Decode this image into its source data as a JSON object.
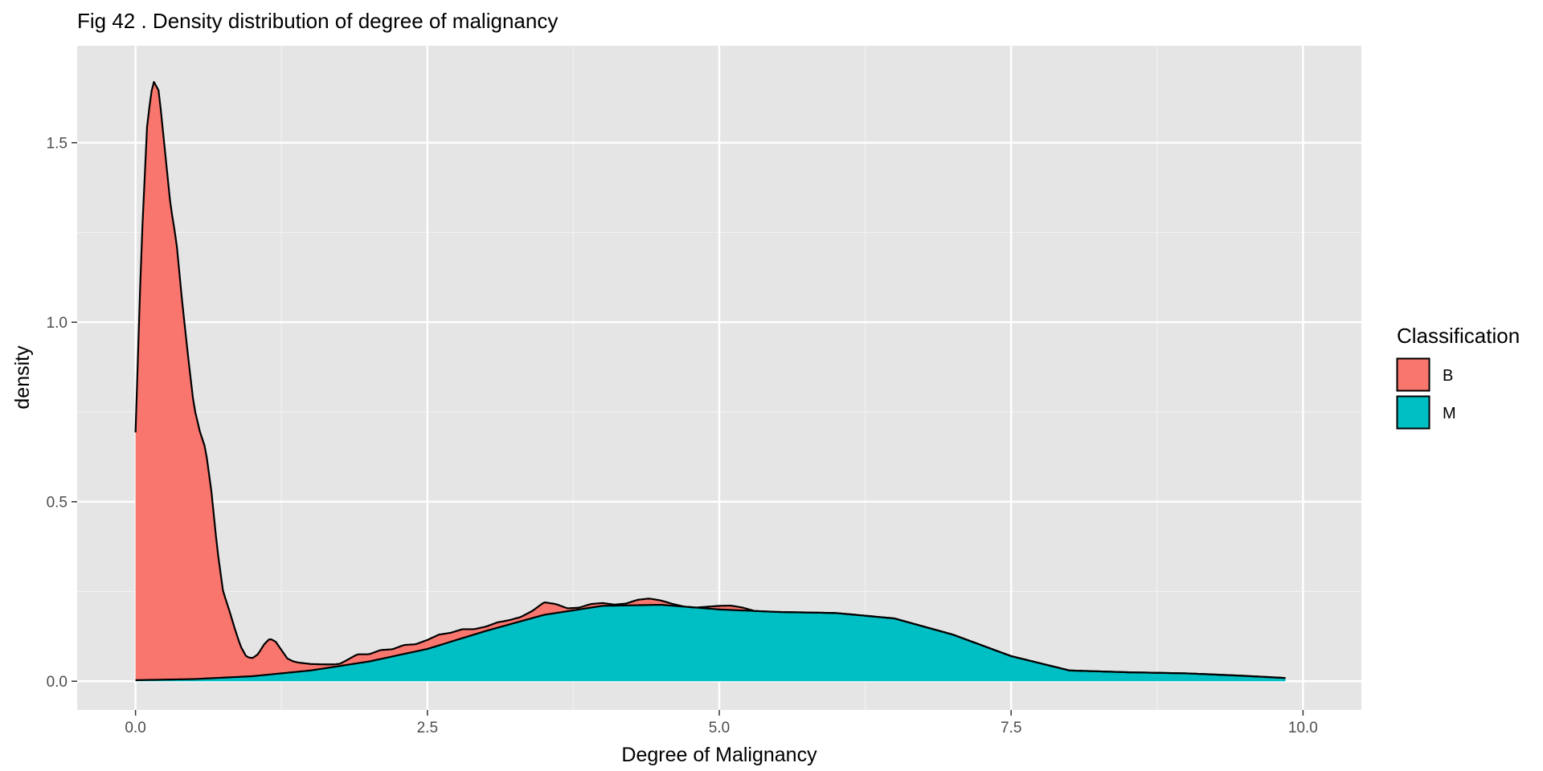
{
  "chart_data": {
    "type": "area",
    "title": "Fig 42 . Density distribution of degree of malignancy",
    "xlabel": "Degree of Malignancy",
    "ylabel": "density",
    "xlim": [
      -0.5,
      10.5
    ],
    "ylim": [
      -0.08,
      1.77
    ],
    "x_ticks": [
      0,
      2.5,
      5,
      7.5,
      10
    ],
    "x_tick_labels": [
      "0.0",
      "2.5",
      "5.0",
      "7.5",
      "10.0"
    ],
    "y_ticks": [
      0,
      0.5,
      1.0,
      1.5
    ],
    "y_tick_labels": [
      "0.0",
      "0.5",
      "1.0",
      "1.5"
    ],
    "grid": true,
    "background": "#e5e5e5",
    "legend": {
      "title": "Classification",
      "position": "right"
    },
    "stacked": true,
    "series": [
      {
        "name": "B",
        "color": "#f8766d",
        "x": [
          0.0,
          0.05,
          0.1,
          0.15,
          0.2,
          0.25,
          0.3,
          0.35,
          0.4,
          0.45,
          0.5,
          0.55,
          0.6,
          0.65,
          0.7,
          0.75,
          0.8,
          0.85,
          0.9,
          0.95,
          1.0,
          1.05,
          1.1,
          1.15,
          1.2,
          1.25,
          1.3,
          1.35,
          1.4,
          1.5,
          1.6,
          1.7,
          1.75,
          1.8,
          1.9,
          2.0,
          2.1,
          2.2,
          2.3,
          2.4,
          2.5,
          2.6,
          2.7,
          2.8,
          2.9,
          3.0,
          3.1,
          3.2,
          3.3,
          3.4,
          3.5,
          3.6,
          3.7,
          3.8,
          3.9,
          4.0,
          4.1,
          4.2,
          4.3,
          4.4,
          4.5,
          4.6,
          4.7,
          4.8,
          4.9,
          5.0,
          5.1,
          5.2,
          5.3,
          5.4,
          5.5,
          6.0,
          6.5,
          7.0,
          7.5,
          8.0,
          8.5,
          9.0,
          9.5,
          9.85
        ],
        "values": [
          0.69,
          1.2,
          1.55,
          1.67,
          1.64,
          1.48,
          1.32,
          1.22,
          1.05,
          0.9,
          0.76,
          0.69,
          0.64,
          0.52,
          0.36,
          0.24,
          0.19,
          0.135,
          0.085,
          0.055,
          0.05,
          0.06,
          0.085,
          0.1,
          0.09,
          0.065,
          0.04,
          0.03,
          0.025,
          0.018,
          0.012,
          0.007,
          0.006,
          0.012,
          0.025,
          0.02,
          0.025,
          0.02,
          0.025,
          0.02,
          0.025,
          0.03,
          0.025,
          0.025,
          0.015,
          0.012,
          0.015,
          0.012,
          0.012,
          0.02,
          0.035,
          0.025,
          0.008,
          0.005,
          0.01,
          0.008,
          0.003,
          0.005,
          0.015,
          0.018,
          0.012,
          0.005,
          0.0,
          0.0,
          0.005,
          0.01,
          0.012,
          0.008,
          0.0,
          0.0,
          0.0,
          0.0,
          0.0,
          0.0,
          0.0,
          0.0,
          0.0,
          0.0,
          0.0,
          0.0
        ]
      },
      {
        "name": "M",
        "color": "#00bfc4",
        "x": [
          0.0,
          0.5,
          1.0,
          1.5,
          2.0,
          2.5,
          3.0,
          3.5,
          4.0,
          4.5,
          5.0,
          5.5,
          6.0,
          6.5,
          7.0,
          7.5,
          8.0,
          8.5,
          9.0,
          9.5,
          9.85
        ],
        "values": [
          0.003,
          0.006,
          0.014,
          0.03,
          0.055,
          0.09,
          0.14,
          0.185,
          0.21,
          0.213,
          0.2,
          0.193,
          0.19,
          0.175,
          0.13,
          0.07,
          0.03,
          0.025,
          0.022,
          0.015,
          0.009
        ]
      }
    ]
  }
}
